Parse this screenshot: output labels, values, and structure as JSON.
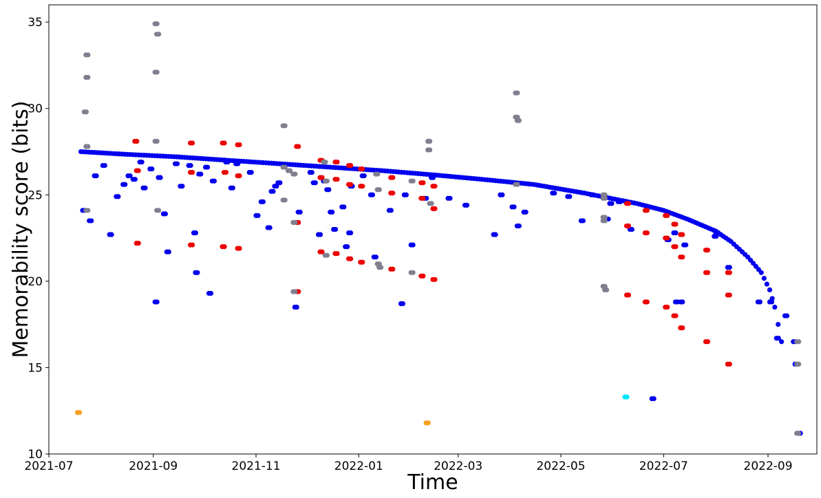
{
  "chart_data": {
    "type": "scatter",
    "title": "",
    "xlabel": "Time",
    "ylabel": "Memorability score (bits)",
    "xlim": [
      "2021-07-01",
      "2022-09-30"
    ],
    "ylim": [
      10,
      36
    ],
    "grid": false,
    "x_ticks": [
      "2021-07",
      "2021-09",
      "2021-11",
      "2022-01",
      "2022-03",
      "2022-05",
      "2022-07",
      "2022-09"
    ],
    "y_ticks": [
      10,
      15,
      20,
      25,
      30,
      35
    ],
    "colors": {
      "blue": "#0000ee",
      "red": "#ee0000",
      "gray": "#7f7f8f",
      "orange": "#f5a020",
      "cyan": "#00e5ff"
    },
    "series": [
      {
        "color": "blue",
        "trend": {
          "description": "dense decreasing curve",
          "points": [
            [
              "2021-07-20",
              27.5
            ],
            [
              "2021-08-15",
              27.35
            ],
            [
              "2021-09-15",
              27.2
            ],
            [
              "2021-10-15",
              27.0
            ],
            [
              "2021-11-15",
              26.8
            ],
            [
              "2021-12-15",
              26.6
            ],
            [
              "2022-01-15",
              26.4
            ],
            [
              "2022-02-15",
              26.15
            ],
            [
              "2022-03-15",
              25.9
            ],
            [
              "2022-04-15",
              25.6
            ],
            [
              "2022-05-15",
              25.1
            ],
            [
              "2022-06-15",
              24.5
            ],
            [
              "2022-07-01",
              24.1
            ],
            [
              "2022-07-15",
              23.6
            ],
            [
              "2022-08-01",
              22.9
            ],
            [
              "2022-08-10",
              22.3
            ],
            [
              "2022-08-20",
              21.4
            ],
            [
              "2022-08-28",
              20.5
            ],
            [
              "2022-09-02",
              19.5
            ],
            [
              "2022-09-05",
              18.5
            ],
            [
              "2022-09-07",
              17.5
            ],
            [
              "2022-09-09",
              16.5
            ],
            [
              "2022-09-10",
              15.2
            ]
          ]
        },
        "points": [
          [
            "2021-07-21",
            24.1
          ],
          [
            "2021-07-25",
            23.5
          ],
          [
            "2021-07-28",
            26.1
          ],
          [
            "2021-08-02",
            26.7
          ],
          [
            "2021-08-06",
            22.7
          ],
          [
            "2021-08-10",
            24.9
          ],
          [
            "2021-08-14",
            25.6
          ],
          [
            "2021-08-17",
            26.1
          ],
          [
            "2021-08-20",
            25.9
          ],
          [
            "2021-08-24",
            26.9
          ],
          [
            "2021-08-26",
            25.4
          ],
          [
            "2021-08-30",
            26.5
          ],
          [
            "2021-09-02",
            18.8
          ],
          [
            "2021-09-04",
            26.0
          ],
          [
            "2021-09-07",
            23.9
          ],
          [
            "2021-09-09",
            21.7
          ],
          [
            "2021-09-14",
            26.8
          ],
          [
            "2021-09-17",
            25.5
          ],
          [
            "2021-09-22",
            26.7
          ],
          [
            "2021-09-25",
            22.8
          ],
          [
            "2021-09-26",
            20.5
          ],
          [
            "2021-09-28",
            26.2
          ],
          [
            "2021-10-02",
            26.6
          ],
          [
            "2021-10-04",
            19.3
          ],
          [
            "2021-10-06",
            25.8
          ],
          [
            "2021-10-14",
            26.9
          ],
          [
            "2021-10-17",
            25.4
          ],
          [
            "2021-10-20",
            26.8
          ],
          [
            "2021-10-28",
            26.3
          ],
          [
            "2021-11-01",
            23.8
          ],
          [
            "2021-11-04",
            24.6
          ],
          [
            "2021-11-08",
            23.1
          ],
          [
            "2021-11-10",
            25.2
          ],
          [
            "2021-11-12",
            25.5
          ],
          [
            "2021-11-14",
            25.7
          ],
          [
            "2021-11-24",
            18.5
          ],
          [
            "2021-11-26",
            24.0
          ],
          [
            "2021-12-03",
            26.3
          ],
          [
            "2021-12-05",
            25.7
          ],
          [
            "2021-12-08",
            22.7
          ],
          [
            "2021-12-11",
            25.8
          ],
          [
            "2021-12-13",
            25.3
          ],
          [
            "2021-12-15",
            24.0
          ],
          [
            "2021-12-17",
            23.0
          ],
          [
            "2021-12-22",
            24.3
          ],
          [
            "2021-12-24",
            22.0
          ],
          [
            "2021-12-26",
            22.8
          ],
          [
            "2021-12-27",
            25.5
          ],
          [
            "2022-01-03",
            26.1
          ],
          [
            "2022-01-08",
            25.0
          ],
          [
            "2022-01-10",
            21.4
          ],
          [
            "2022-01-19",
            24.1
          ],
          [
            "2022-01-26",
            18.7
          ],
          [
            "2022-01-28",
            25.0
          ],
          [
            "2022-02-01",
            22.1
          ],
          [
            "2022-02-09",
            24.8
          ],
          [
            "2022-02-13",
            26.0
          ],
          [
            "2022-02-23",
            24.8
          ],
          [
            "2022-03-05",
            24.4
          ],
          [
            "2022-03-22",
            22.7
          ],
          [
            "2022-03-26",
            25.0
          ],
          [
            "2022-04-02",
            24.3
          ],
          [
            "2022-04-05",
            23.2
          ],
          [
            "2022-04-09",
            24.0
          ],
          [
            "2022-04-26",
            25.1
          ],
          [
            "2022-05-05",
            24.9
          ],
          [
            "2022-05-13",
            23.5
          ],
          [
            "2022-05-19",
            25.0
          ],
          [
            "2022-05-28",
            23.6
          ],
          [
            "2022-05-30",
            24.5
          ],
          [
            "2022-06-04",
            24.6
          ],
          [
            "2022-06-11",
            23.0
          ],
          [
            "2022-06-21",
            24.3
          ],
          [
            "2022-06-24",
            13.2
          ],
          [
            "2022-07-03",
            22.4
          ],
          [
            "2022-07-07",
            22.8
          ],
          [
            "2022-07-08",
            18.8
          ],
          [
            "2022-07-11",
            18.8
          ],
          [
            "2022-07-13",
            22.1
          ],
          [
            "2022-07-31",
            22.6
          ],
          [
            "2022-08-01",
            22.8
          ],
          [
            "2022-08-08",
            20.8
          ],
          [
            "2022-08-26",
            18.8
          ],
          [
            "2022-09-02",
            18.8
          ],
          [
            "2022-09-06",
            16.7
          ],
          [
            "2022-09-11",
            18.0
          ],
          [
            "2022-09-16",
            16.5
          ],
          [
            "2022-09-17",
            15.2
          ],
          [
            "2022-09-19",
            11.2
          ]
        ]
      },
      {
        "color": "red",
        "points": [
          [
            "2021-08-21",
            28.1
          ],
          [
            "2021-08-22",
            26.4
          ],
          [
            "2021-08-22",
            22.2
          ],
          [
            "2021-09-23",
            28.0
          ],
          [
            "2021-09-23",
            26.3
          ],
          [
            "2021-09-23",
            22.1
          ],
          [
            "2021-10-12",
            28.0
          ],
          [
            "2021-10-13",
            26.3
          ],
          [
            "2021-10-12",
            22.0
          ],
          [
            "2021-10-21",
            27.9
          ],
          [
            "2021-10-21",
            26.1
          ],
          [
            "2021-10-21",
            21.9
          ],
          [
            "2021-11-25",
            27.8
          ],
          [
            "2021-11-25",
            23.4
          ],
          [
            "2021-11-25",
            19.4
          ],
          [
            "2021-12-09",
            27.0
          ],
          [
            "2021-12-09",
            26.0
          ],
          [
            "2021-12-09",
            21.7
          ],
          [
            "2021-12-18",
            26.9
          ],
          [
            "2021-12-18",
            25.9
          ],
          [
            "2021-12-18",
            21.6
          ],
          [
            "2021-12-26",
            26.7
          ],
          [
            "2021-12-26",
            25.6
          ],
          [
            "2021-12-26",
            21.3
          ],
          [
            "2022-01-02",
            26.5
          ],
          [
            "2022-01-02",
            25.5
          ],
          [
            "2022-01-02",
            21.1
          ],
          [
            "2022-01-20",
            26.0
          ],
          [
            "2022-01-20",
            25.1
          ],
          [
            "2022-01-20",
            20.7
          ],
          [
            "2022-02-07",
            25.7
          ],
          [
            "2022-02-07",
            24.8
          ],
          [
            "2022-02-07",
            20.3
          ],
          [
            "2022-02-14",
            25.5
          ],
          [
            "2022-02-14",
            24.2
          ],
          [
            "2022-02-14",
            20.1
          ],
          [
            "2022-06-09",
            24.5
          ],
          [
            "2022-06-09",
            23.2
          ],
          [
            "2022-06-09",
            19.2
          ],
          [
            "2022-06-20",
            24.1
          ],
          [
            "2022-06-20",
            22.8
          ],
          [
            "2022-06-20",
            18.8
          ],
          [
            "2022-07-02",
            23.8
          ],
          [
            "2022-07-02",
            22.5
          ],
          [
            "2022-07-02",
            18.5
          ],
          [
            "2022-07-07",
            23.3
          ],
          [
            "2022-07-07",
            22.0
          ],
          [
            "2022-07-07",
            18.0
          ],
          [
            "2022-07-11",
            22.7
          ],
          [
            "2022-07-11",
            21.4
          ],
          [
            "2022-07-11",
            17.3
          ],
          [
            "2022-07-26",
            21.8
          ],
          [
            "2022-07-26",
            20.5
          ],
          [
            "2022-07-26",
            16.5
          ],
          [
            "2022-08-08",
            20.5
          ],
          [
            "2022-08-08",
            19.2
          ],
          [
            "2022-08-08",
            15.2
          ]
        ]
      },
      {
        "color": "gray",
        "points": [
          [
            "2021-07-23",
            33.1
          ],
          [
            "2021-07-23",
            31.8
          ],
          [
            "2021-07-22",
            29.8
          ],
          [
            "2021-07-23",
            27.8
          ],
          [
            "2021-07-23",
            24.1
          ],
          [
            "2021-09-02",
            34.9
          ],
          [
            "2021-09-03",
            34.3
          ],
          [
            "2021-09-02",
            32.1
          ],
          [
            "2021-09-02",
            28.1
          ],
          [
            "2021-09-03",
            24.1
          ],
          [
            "2021-11-17",
            29.0
          ],
          [
            "2021-11-17",
            26.6
          ],
          [
            "2021-11-17",
            24.7
          ],
          [
            "2021-11-20",
            26.4
          ],
          [
            "2021-11-23",
            26.2
          ],
          [
            "2021-11-23",
            23.4
          ],
          [
            "2021-11-23",
            19.4
          ],
          [
            "2021-12-11",
            26.9
          ],
          [
            "2021-12-12",
            25.8
          ],
          [
            "2021-12-12",
            21.5
          ],
          [
            "2022-01-11",
            26.2
          ],
          [
            "2022-01-12",
            25.3
          ],
          [
            "2022-01-12",
            21.0
          ],
          [
            "2022-01-13",
            20.8
          ],
          [
            "2022-02-01",
            25.8
          ],
          [
            "2022-02-01",
            20.5
          ],
          [
            "2022-02-11",
            28.1
          ],
          [
            "2022-02-11",
            27.6
          ],
          [
            "2022-02-12",
            24.5
          ],
          [
            "2022-04-04",
            30.9
          ],
          [
            "2022-04-04",
            29.5
          ],
          [
            "2022-04-05",
            29.3
          ],
          [
            "2022-04-04",
            25.6
          ],
          [
            "2022-05-26",
            25.0
          ],
          [
            "2022-05-26",
            24.8
          ],
          [
            "2022-05-26",
            23.7
          ],
          [
            "2022-05-26",
            23.5
          ],
          [
            "2022-05-26",
            19.7
          ],
          [
            "2022-05-27",
            19.5
          ],
          [
            "2022-09-18",
            16.5
          ],
          [
            "2022-09-18",
            15.2
          ],
          [
            "2022-09-18",
            11.2
          ]
        ]
      },
      {
        "color": "orange",
        "points": [
          [
            "2021-07-18",
            12.4
          ],
          [
            "2022-02-10",
            11.8
          ]
        ]
      },
      {
        "color": "cyan",
        "points": [
          [
            "2022-06-08",
            13.3
          ]
        ]
      }
    ]
  }
}
